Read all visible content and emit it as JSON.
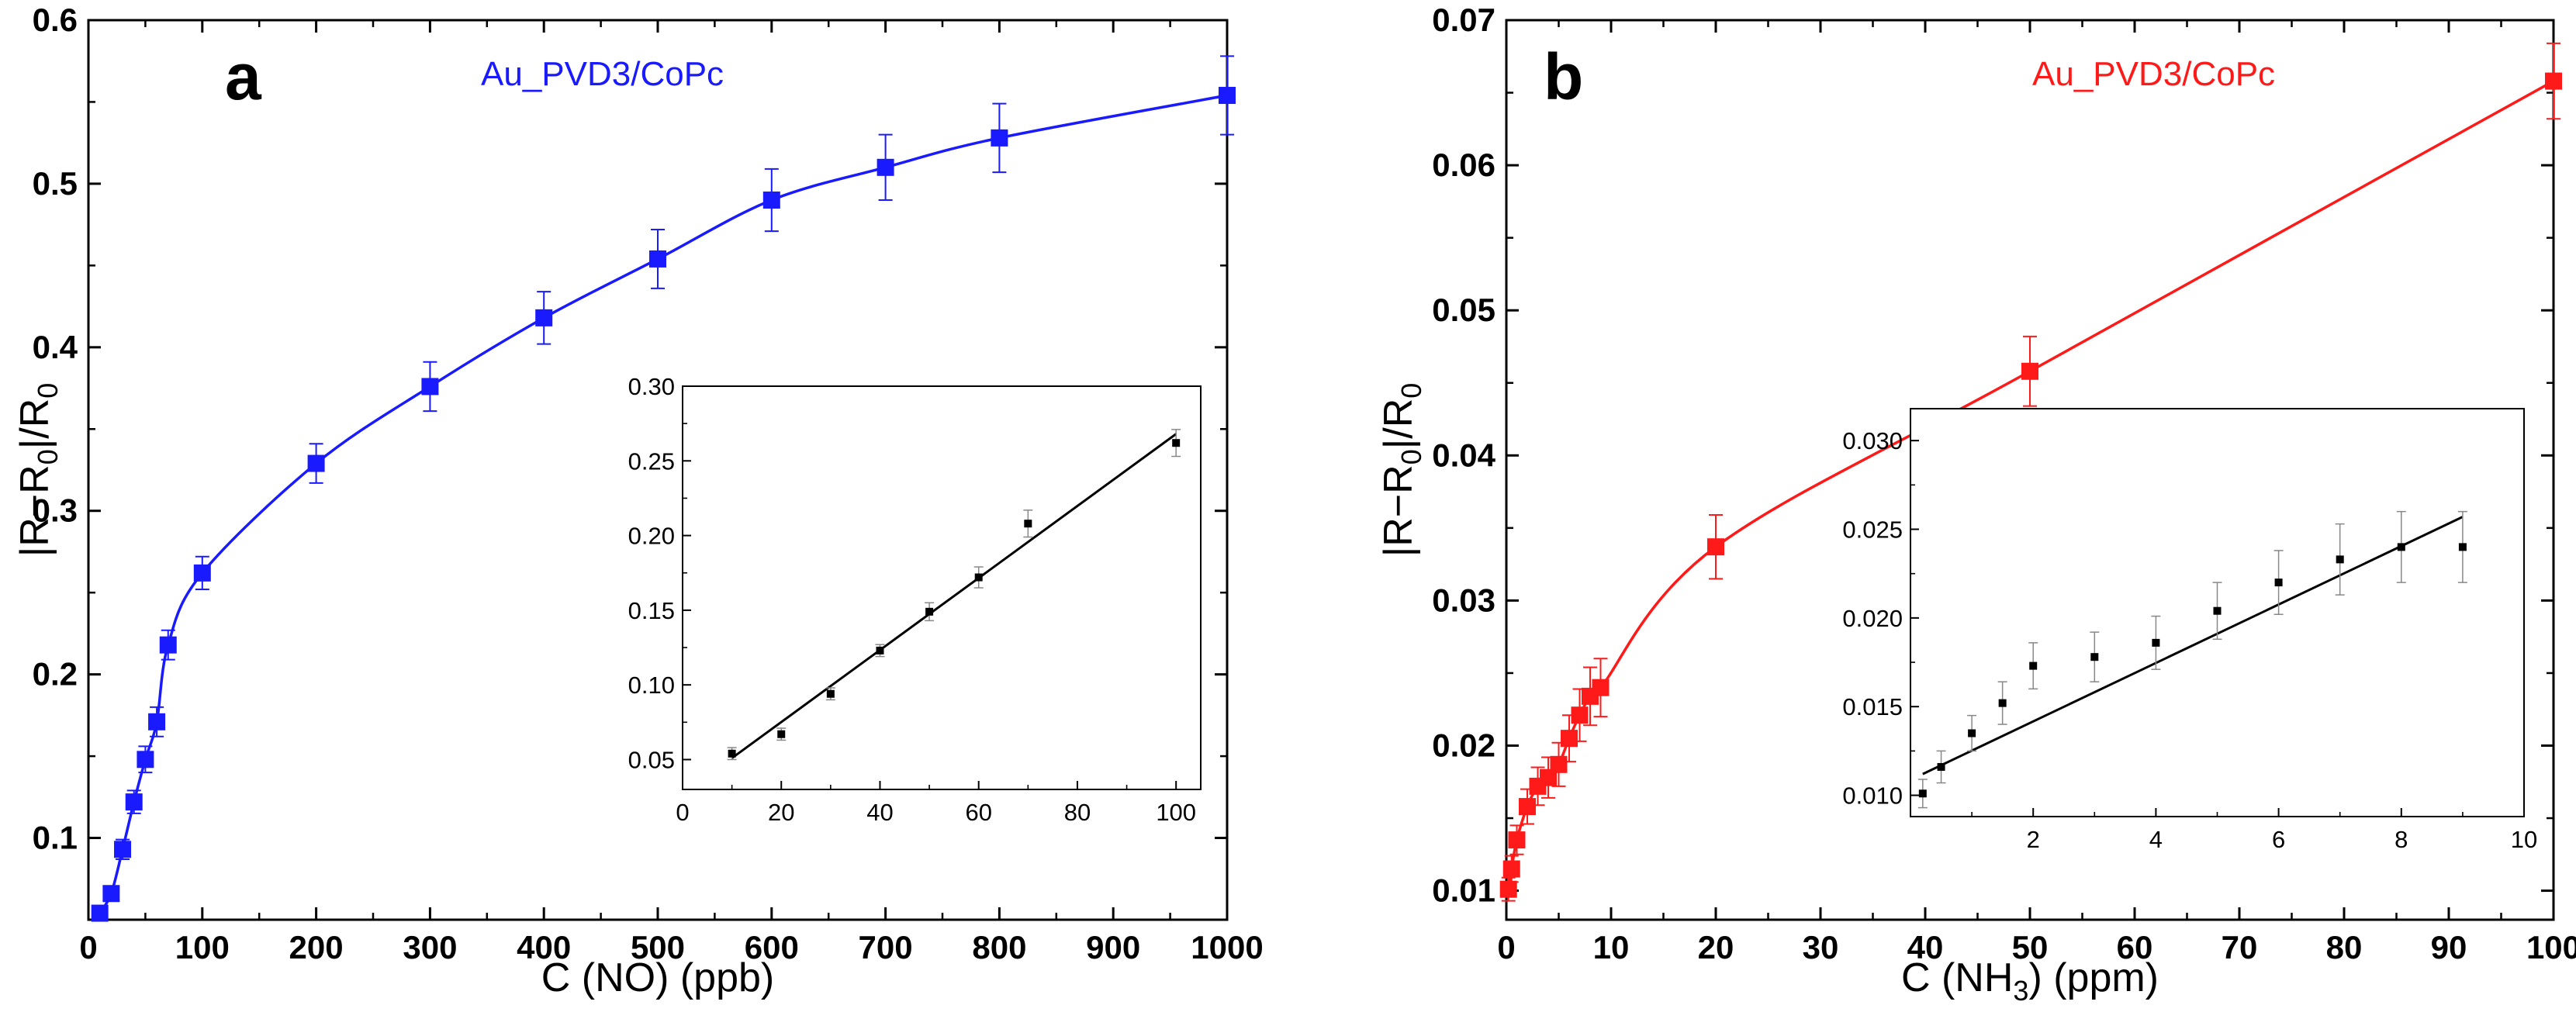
{
  "chart_data": [
    {
      "panel": "a",
      "type": "scatter",
      "series_label": "Au_PVD3/CoPc",
      "series_color": "#1a1aff",
      "fit": "curve",
      "xlabel": "C (NO) (ppb)",
      "ylabel": "|R−R0|/R0",
      "xlim": [
        0,
        1000
      ],
      "ylim": [
        0.05,
        0.6
      ],
      "xticks": [
        0,
        100,
        200,
        300,
        400,
        500,
        600,
        700,
        800,
        900,
        1000
      ],
      "yticks": [
        0.1,
        0.2,
        0.3,
        0.4,
        0.5,
        0.6
      ],
      "x": [
        10,
        20,
        30,
        40,
        50,
        60,
        70,
        100,
        200,
        300,
        400,
        500,
        600,
        700,
        800,
        1000
      ],
      "y": [
        0.054,
        0.066,
        0.093,
        0.122,
        0.148,
        0.171,
        0.218,
        0.262,
        0.329,
        0.376,
        0.418,
        0.454,
        0.49,
        0.51,
        0.528,
        0.554
      ],
      "yerr": [
        0.004,
        0.004,
        0.006,
        0.007,
        0.008,
        0.009,
        0.009,
        0.01,
        0.012,
        0.015,
        0.016,
        0.018,
        0.019,
        0.02,
        0.021,
        0.024
      ],
      "inset": {
        "type": "scatter",
        "fit": "linear",
        "xlim": [
          0,
          105
        ],
        "ylim": [
          0.03,
          0.3
        ],
        "xticks": [
          0,
          20,
          40,
          60,
          80,
          100
        ],
        "yticks": [
          0.05,
          0.1,
          0.15,
          0.2,
          0.25,
          0.3
        ],
        "ytick_labels": [
          "0.05",
          "0.10",
          "0.15",
          "0.20",
          "0.25",
          "0.30"
        ],
        "x": [
          10,
          20,
          30,
          40,
          50,
          60,
          70,
          100
        ],
        "y": [
          0.054,
          0.067,
          0.094,
          0.123,
          0.149,
          0.172,
          0.208,
          0.262
        ],
        "yerr": [
          0.004,
          0.004,
          0.004,
          0.004,
          0.006,
          0.007,
          0.009,
          0.009
        ],
        "fit_line": {
          "x": [
            10,
            100
          ],
          "y": [
            0.051,
            0.268
          ]
        }
      }
    },
    {
      "panel": "b",
      "type": "scatter",
      "series_label": "Au_PVD3/CoPc",
      "series_color": "#ff1a1a",
      "fit": "curve",
      "xlabel": "C (NH3) (ppm)",
      "ylabel": "|R−R0|/R0",
      "xlim": [
        0,
        100
      ],
      "ylim": [
        0.008,
        0.07
      ],
      "xticks": [
        0,
        10,
        20,
        30,
        40,
        50,
        60,
        70,
        80,
        90,
        100
      ],
      "yticks": [
        0.01,
        0.02,
        0.03,
        0.04,
        0.05,
        0.06,
        0.07
      ],
      "x": [
        0.2,
        0.5,
        1,
        2,
        3,
        4,
        5,
        6,
        7,
        8,
        9,
        20,
        50,
        100
      ],
      "y": [
        0.0101,
        0.0115,
        0.0135,
        0.0158,
        0.0172,
        0.0178,
        0.0187,
        0.0205,
        0.0221,
        0.0234,
        0.024,
        0.0337,
        0.0458,
        0.0658
      ],
      "yerr": [
        0.0008,
        0.0009,
        0.001,
        0.0012,
        0.0013,
        0.0014,
        0.0015,
        0.0016,
        0.0018,
        0.002,
        0.002,
        0.0022,
        0.0024,
        0.0026
      ],
      "inset": {
        "type": "scatter",
        "fit": "linear",
        "xlim": [
          0,
          10
        ],
        "ylim": [
          0.0088,
          0.0318
        ],
        "xticks": [
          2,
          4,
          6,
          8,
          10
        ],
        "yticks": [
          0.01,
          0.015,
          0.02,
          0.025,
          0.03
        ],
        "ytick_labels": [
          "0.010",
          "0.015",
          "0.020",
          "0.025",
          "0.030"
        ],
        "x": [
          0.2,
          0.5,
          1,
          1.5,
          2,
          3,
          4,
          5,
          6,
          7,
          8,
          9
        ],
        "y": [
          0.0101,
          0.0116,
          0.0135,
          0.0152,
          0.0173,
          0.0178,
          0.0186,
          0.0204,
          0.022,
          0.0233,
          0.024,
          0.024
        ],
        "yerr": [
          0.0008,
          0.0009,
          0.001,
          0.0012,
          0.0013,
          0.0014,
          0.0015,
          0.0016,
          0.0018,
          0.002,
          0.002,
          0.002
        ],
        "fit_line": {
          "x": [
            0.2,
            9
          ],
          "y": [
            0.0112,
            0.0257
          ]
        }
      }
    }
  ]
}
